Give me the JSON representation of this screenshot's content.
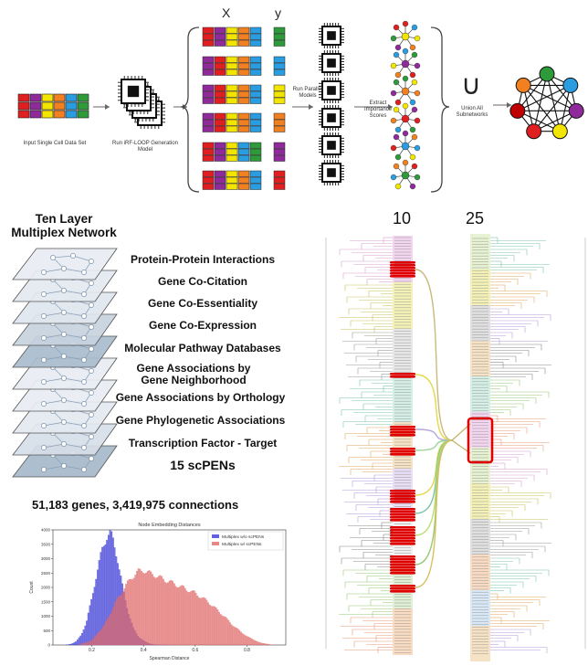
{
  "pipeline": {
    "input_label": "Input Single Cell Data Set",
    "model_label": "Run iRF-LOOP Generation Model",
    "x_label": "X",
    "y_label": "y",
    "parallel_label": "Run Parallel Models",
    "extract_label": "Extract Importance Scores",
    "union_symbol": "∪",
    "union_label": "Union All Subnetworks",
    "input_colors": [
      "#e02020",
      "#8e2a9a",
      "#f2e600",
      "#f08020",
      "#2a9de0",
      "#2e9a3a"
    ],
    "x_row_colors": [
      [
        "#e02020",
        "#8e2a9a",
        "#f2e600",
        "#f08020",
        "#2a9de0"
      ],
      [
        "#8e2a9a",
        "#e02020",
        "#f2e600",
        "#f08020",
        "#2a9de0"
      ],
      [
        "#8e2a9a",
        "#e02020",
        "#f2e600",
        "#f08020",
        "#2a9de0"
      ],
      [
        "#8e2a9a",
        "#e02020",
        "#f2e600",
        "#f08020",
        "#2a9de0"
      ],
      [
        "#e02020",
        "#8e2a9a",
        "#f2e600",
        "#2a9de0",
        "#2e9a3a"
      ],
      [
        "#e02020",
        "#8e2a9a",
        "#f2e600",
        "#f08020",
        "#2a9de0"
      ]
    ],
    "y_colors": [
      "#2e9a3a",
      "#2a9de0",
      "#f2e600",
      "#f08020",
      "#8e2a9a",
      "#e02020"
    ],
    "final_network_colors": [
      "#2e9a3a",
      "#2a9de0",
      "#8e2a9a",
      "#f2e600",
      "#e02020",
      "#c00000",
      "#f08020"
    ]
  },
  "multiplex": {
    "title_line1": "Ten Layer",
    "title_line2": "Multiplex Network",
    "layers": [
      {
        "label": "Protein-Protein Interactions"
      },
      {
        "label": "Gene Co-Citation"
      },
      {
        "label": "Gene Co-Essentiality"
      },
      {
        "label": "Gene Co-Expression"
      },
      {
        "label": "Molecular Pathway Databases"
      },
      {
        "label": "Gene Associations by Gene Neighborhood"
      },
      {
        "label": "Gene Associations by Orthology"
      },
      {
        "label": "Gene Phylogenetic Associations"
      },
      {
        "label": "Transcription Factor - Target"
      },
      {
        "label": "15 scPENs"
      }
    ],
    "stats": "51,183 genes, 3,419,975 connections"
  },
  "dendrogram": {
    "left_label": "10",
    "right_label": "25"
  },
  "chart_data": {
    "type": "bar",
    "title": "Node Embedding Distances",
    "xlabel": "Spearman Distance",
    "ylabel": "Count",
    "xlim": [
      0.05,
      0.95
    ],
    "ylim": [
      0,
      4000
    ],
    "xticks": [
      0.2,
      0.4,
      0.6,
      0.8
    ],
    "yticks": [
      0,
      500,
      1000,
      1500,
      2000,
      2500,
      3000,
      3500,
      4000
    ],
    "legend_position": "top-right",
    "series": [
      {
        "name": "Multiplex w/o scPENs",
        "color": "#3b3bd6",
        "x": [
          0.1,
          0.12,
          0.14,
          0.16,
          0.18,
          0.2,
          0.22,
          0.24,
          0.26,
          0.27,
          0.28,
          0.3,
          0.32,
          0.34,
          0.36,
          0.38,
          0.4,
          0.42,
          0.44,
          0.46,
          0.5
        ],
        "y": [
          0,
          30,
          120,
          350,
          800,
          1600,
          2500,
          3300,
          3800,
          3900,
          3750,
          3000,
          2000,
          1200,
          600,
          300,
          150,
          60,
          20,
          5,
          0
        ]
      },
      {
        "name": "Multiplex w/ scPENs",
        "color": "#e06a6a",
        "x": [
          0.15,
          0.2,
          0.25,
          0.3,
          0.35,
          0.38,
          0.4,
          0.42,
          0.44,
          0.46,
          0.5,
          0.55,
          0.6,
          0.65,
          0.7,
          0.75,
          0.8,
          0.85,
          0.9
        ],
        "y": [
          0,
          150,
          700,
          1600,
          2300,
          2550,
          2600,
          2500,
          2450,
          2350,
          2200,
          2000,
          1800,
          1500,
          1100,
          650,
          300,
          80,
          0
        ]
      }
    ]
  }
}
